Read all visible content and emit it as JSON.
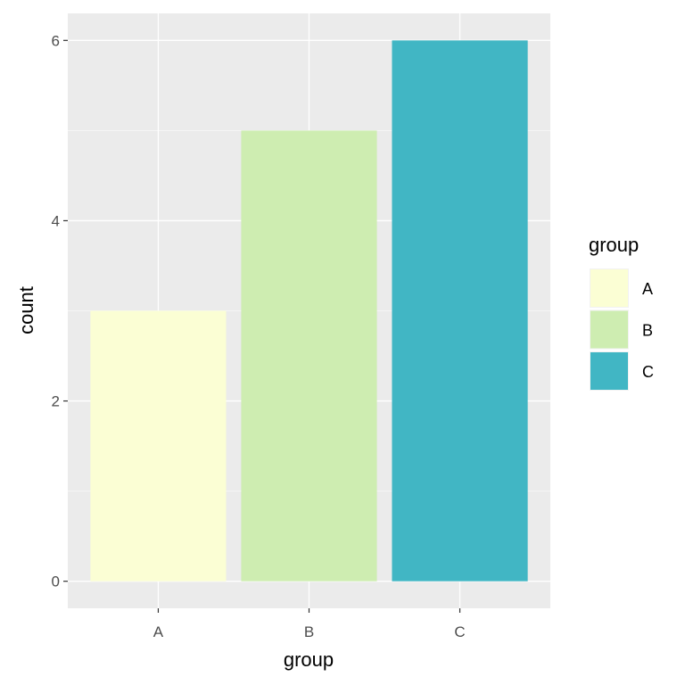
{
  "chart_data": {
    "type": "bar",
    "categories": [
      "A",
      "B",
      "C"
    ],
    "values": [
      3,
      5,
      6
    ],
    "colors": [
      "#FBFED4",
      "#CEEDB1",
      "#41B6C4"
    ],
    "xlabel": "group",
    "ylabel": "count",
    "ylim": [
      -0.3,
      6.3
    ],
    "yticks": [
      0,
      2,
      4,
      6
    ],
    "ytick_labels": [
      "0",
      "2",
      "4",
      "6"
    ],
    "grid": true,
    "panel_background": "#EBEBEB",
    "grid_color": "#FFFFFF",
    "legend": {
      "title": "group",
      "placement": "right",
      "entries": [
        "A",
        "B",
        "C"
      ]
    }
  }
}
